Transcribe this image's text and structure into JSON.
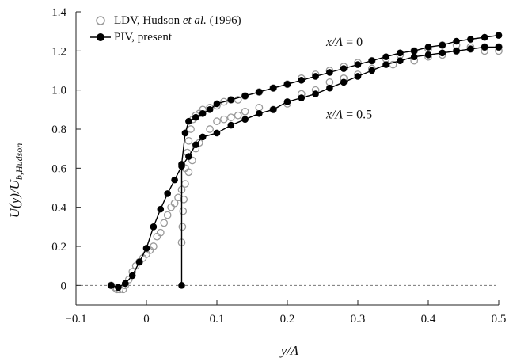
{
  "chart_data": {
    "type": "scatter",
    "xlabel": "y/Λ",
    "ylabel": "U(y)/U",
    "ylabel_sub": "b,Hudson",
    "xlim": [
      -0.1,
      0.5
    ],
    "ylim": [
      -0.1,
      1.4
    ],
    "xticks": [
      -0.1,
      0,
      0.1,
      0.2,
      0.3,
      0.4,
      0.5
    ],
    "xtick_labels": [
      "−0.1",
      "0",
      "0.1",
      "0.2",
      "0.3",
      "0.4",
      "0.5"
    ],
    "yticks": [
      0,
      0.2,
      0.4,
      0.6,
      0.8,
      1.0,
      1.2,
      1.4
    ],
    "ytick_labels": [
      "0",
      "0.2",
      "0.4",
      "0.6",
      "0.8",
      "1.0",
      "1.2",
      "1.4"
    ],
    "grid": false,
    "legend_position": "top-left",
    "reference_line": {
      "y": 0,
      "style": "dotted",
      "color": "#777777"
    },
    "legend": {
      "ldv_prefix": "LDV, Hudson ",
      "ldv_italic": "et al.",
      "ldv_suffix": " (1996)",
      "piv": "PIV, present"
    },
    "annotations": {
      "upper": {
        "prefix": "x/Λ",
        "suffix": " = 0",
        "x": 0.255,
        "y": 1.225
      },
      "lower": {
        "prefix": "x/Λ",
        "suffix": " = 0.5",
        "x": 0.255,
        "y": 0.855
      }
    },
    "series": [
      {
        "name": "LDV, Hudson et al. (1996)",
        "marker": "open-circle",
        "color": "#9a9a9a",
        "points": [
          [
            -0.05,
            0.0
          ],
          [
            -0.045,
            -0.01
          ],
          [
            -0.042,
            -0.02
          ],
          [
            -0.038,
            -0.02
          ],
          [
            -0.033,
            -0.02
          ],
          [
            -0.03,
            0.0
          ],
          [
            -0.025,
            0.03
          ],
          [
            -0.02,
            0.07
          ],
          [
            -0.015,
            0.1
          ],
          [
            -0.01,
            0.12
          ],
          [
            -0.005,
            0.14
          ],
          [
            0.0,
            0.16
          ],
          [
            0.005,
            0.18
          ],
          [
            0.01,
            0.2
          ],
          [
            0.015,
            0.25
          ],
          [
            0.02,
            0.27
          ],
          [
            0.025,
            0.32
          ],
          [
            0.03,
            0.36
          ],
          [
            0.035,
            0.4
          ],
          [
            0.04,
            0.42
          ],
          [
            0.045,
            0.45
          ],
          [
            0.05,
            0.49
          ],
          [
            0.055,
            0.52
          ],
          [
            0.06,
            0.58
          ],
          [
            0.065,
            0.64
          ],
          [
            0.07,
            0.7
          ],
          [
            0.075,
            0.73
          ],
          [
            0.09,
            0.8
          ],
          [
            0.1,
            0.84
          ],
          [
            0.11,
            0.85
          ],
          [
            0.12,
            0.86
          ],
          [
            0.13,
            0.87
          ],
          [
            0.14,
            0.89
          ],
          [
            0.16,
            0.91
          ],
          [
            0.18,
            0.9
          ],
          [
            0.2,
            0.93
          ],
          [
            0.22,
            0.98
          ],
          [
            0.24,
            1.0
          ],
          [
            0.26,
            1.04
          ],
          [
            0.28,
            1.06
          ],
          [
            0.3,
            1.08
          ],
          [
            0.32,
            1.11
          ],
          [
            0.35,
            1.13
          ],
          [
            0.38,
            1.15
          ],
          [
            0.4,
            1.17
          ],
          [
            0.42,
            1.18
          ],
          [
            0.44,
            1.2
          ],
          [
            0.46,
            1.21
          ],
          [
            0.48,
            1.2
          ],
          [
            0.5,
            1.2
          ],
          [
            0.05,
            0.22
          ],
          [
            0.051,
            0.3
          ],
          [
            0.052,
            0.38
          ],
          [
            0.053,
            0.44
          ],
          [
            0.055,
            0.6
          ],
          [
            0.058,
            0.68
          ],
          [
            0.06,
            0.74
          ],
          [
            0.063,
            0.8
          ],
          [
            0.066,
            0.85
          ],
          [
            0.07,
            0.87
          ],
          [
            0.075,
            0.88
          ],
          [
            0.08,
            0.9
          ],
          [
            0.09,
            0.91
          ],
          [
            0.1,
            0.92
          ],
          [
            0.11,
            0.94
          ],
          [
            0.12,
            0.95
          ],
          [
            0.13,
            0.95
          ],
          [
            0.14,
            0.97
          ],
          [
            0.16,
            0.99
          ],
          [
            0.18,
            1.01
          ],
          [
            0.2,
            1.03
          ],
          [
            0.22,
            1.06
          ],
          [
            0.24,
            1.08
          ],
          [
            0.26,
            1.1
          ],
          [
            0.28,
            1.12
          ],
          [
            0.3,
            1.14
          ],
          [
            0.32,
            1.15
          ],
          [
            0.34,
            1.16
          ],
          [
            0.36,
            1.18
          ],
          [
            0.38,
            1.2
          ],
          [
            0.4,
            1.21
          ],
          [
            0.42,
            1.23
          ],
          [
            0.44,
            1.23
          ],
          [
            0.46,
            1.22
          ],
          [
            0.48,
            1.22
          ],
          [
            0.5,
            1.22
          ]
        ]
      },
      {
        "name": "PIV, present",
        "marker": "filled-circle-with-line",
        "color": "#000000",
        "curves": [
          {
            "label": "x/Λ = 0",
            "points": [
              [
                0.05,
                0.0
              ],
              [
                0.05,
                0.62
              ],
              [
                0.055,
                0.78
              ],
              [
                0.06,
                0.84
              ],
              [
                0.07,
                0.86
              ],
              [
                0.08,
                0.88
              ],
              [
                0.09,
                0.9
              ],
              [
                0.1,
                0.93
              ],
              [
                0.12,
                0.95
              ],
              [
                0.14,
                0.97
              ],
              [
                0.16,
                0.99
              ],
              [
                0.18,
                1.01
              ],
              [
                0.2,
                1.03
              ],
              [
                0.22,
                1.05
              ],
              [
                0.24,
                1.07
              ],
              [
                0.26,
                1.09
              ],
              [
                0.28,
                1.11
              ],
              [
                0.3,
                1.13
              ],
              [
                0.32,
                1.15
              ],
              [
                0.34,
                1.17
              ],
              [
                0.36,
                1.19
              ],
              [
                0.38,
                1.2
              ],
              [
                0.4,
                1.22
              ],
              [
                0.42,
                1.23
              ],
              [
                0.44,
                1.25
              ],
              [
                0.46,
                1.26
              ],
              [
                0.48,
                1.27
              ],
              [
                0.5,
                1.28
              ]
            ]
          },
          {
            "label": "x/Λ = 0.5",
            "points": [
              [
                -0.05,
                0.0
              ],
              [
                -0.04,
                -0.01
              ],
              [
                -0.03,
                0.01
              ],
              [
                -0.02,
                0.05
              ],
              [
                -0.01,
                0.12
              ],
              [
                0.0,
                0.19
              ],
              [
                0.01,
                0.3
              ],
              [
                0.02,
                0.39
              ],
              [
                0.03,
                0.47
              ],
              [
                0.04,
                0.54
              ],
              [
                0.05,
                0.61
              ],
              [
                0.06,
                0.66
              ],
              [
                0.07,
                0.72
              ],
              [
                0.08,
                0.76
              ],
              [
                0.1,
                0.78
              ],
              [
                0.12,
                0.82
              ],
              [
                0.14,
                0.85
              ],
              [
                0.16,
                0.88
              ],
              [
                0.18,
                0.9
              ],
              [
                0.2,
                0.94
              ],
              [
                0.22,
                0.96
              ],
              [
                0.24,
                0.98
              ],
              [
                0.26,
                1.01
              ],
              [
                0.28,
                1.04
              ],
              [
                0.3,
                1.07
              ],
              [
                0.32,
                1.1
              ],
              [
                0.34,
                1.13
              ],
              [
                0.36,
                1.15
              ],
              [
                0.38,
                1.17
              ],
              [
                0.4,
                1.18
              ],
              [
                0.42,
                1.19
              ],
              [
                0.44,
                1.2
              ],
              [
                0.46,
                1.21
              ],
              [
                0.48,
                1.22
              ],
              [
                0.5,
                1.22
              ]
            ]
          }
        ]
      }
    ]
  }
}
